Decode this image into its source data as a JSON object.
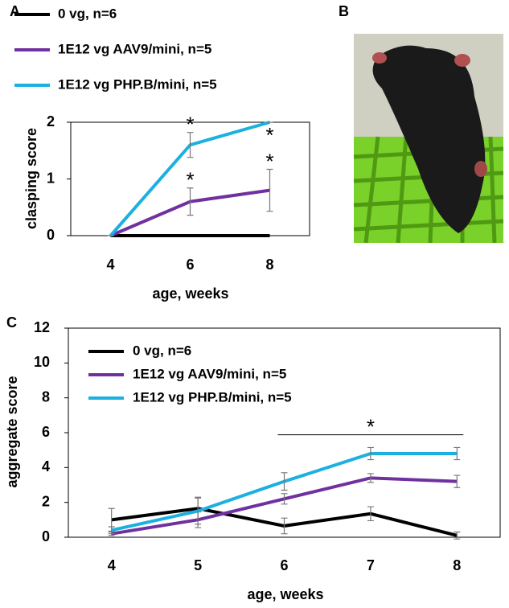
{
  "chart_data": [
    {
      "type": "line",
      "panel_label": "A",
      "x_label": "age, weeks",
      "y_label": "clasping score",
      "categories": [
        4,
        6,
        8
      ],
      "ylim": [
        0,
        2
      ],
      "yticks": [
        0,
        1,
        2
      ],
      "series": [
        {
          "name": "0 vg, n=6",
          "color": "#000000",
          "values": [
            0,
            0,
            0
          ]
        },
        {
          "name": "1E12 vg AAV9/mini, n=5",
          "color": "#7030a0",
          "values": [
            0,
            0.6,
            0.8
          ],
          "errors": [
            0,
            0.24,
            0.37
          ],
          "markers": [
            null,
            "*",
            "*"
          ]
        },
        {
          "name": "1E12 vg PHP.B/mini, n=5",
          "color": "#1cb0e0",
          "values": [
            0,
            1.6,
            2.0
          ],
          "errors": [
            0,
            0.22,
            0
          ],
          "markers": [
            null,
            "*",
            "*"
          ]
        }
      ]
    },
    {
      "type": "line",
      "panel_label": "C",
      "x_label": "age, weeks",
      "y_label": "aggregate score",
      "categories": [
        4,
        5,
        6,
        7,
        8
      ],
      "ylim": [
        0,
        12
      ],
      "yticks": [
        0,
        2,
        4,
        6,
        8,
        10,
        12
      ],
      "series": [
        {
          "name": "0 vg, n=6",
          "color": "#000000",
          "values": [
            1.0,
            1.65,
            0.65,
            1.35,
            0.1
          ],
          "errors": [
            0.65,
            0.65,
            0.45,
            0.4,
            0.2
          ]
        },
        {
          "name": "1E12 vg AAV9/mini, n=5",
          "color": "#7030a0",
          "values": [
            0.2,
            1.0,
            2.2,
            3.4,
            3.2
          ],
          "errors": [
            0.1,
            0.45,
            0.3,
            0.25,
            0.35
          ]
        },
        {
          "name": "1E12 vg PHP.B/mini, n=5",
          "color": "#1cb0e0",
          "values": [
            0.4,
            1.5,
            3.2,
            4.8,
            4.8
          ],
          "errors": [
            0.2,
            0.75,
            0.5,
            0.35,
            0.35
          ]
        }
      ],
      "significance": {
        "label": "*",
        "from": 6,
        "to": 8
      }
    }
  ],
  "photo": {
    "panel_label": "B"
  }
}
